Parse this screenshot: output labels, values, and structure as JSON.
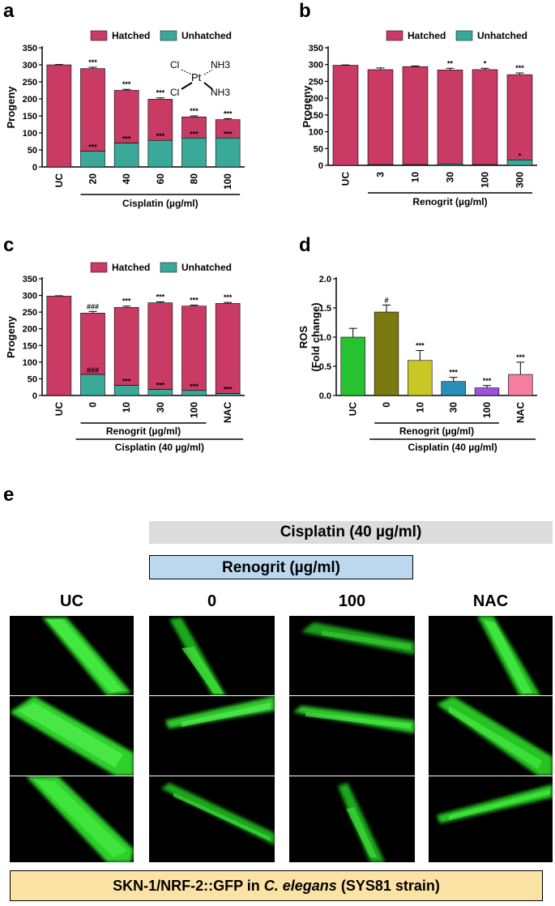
{
  "panels": {
    "a": "a",
    "b": "b",
    "c": "c",
    "d": "d",
    "e": "e"
  },
  "colors": {
    "hatched": "#c93a64",
    "unhatched": "#3aa99a"
  },
  "chart_data": [
    {
      "id": "a",
      "type": "bar",
      "stacked": true,
      "ylabel": "Progeny",
      "xlabel": "Cisplatin (µg/ml)",
      "ylim": [
        0,
        350
      ],
      "yticks": [
        0,
        50,
        100,
        150,
        200,
        250,
        300,
        350
      ],
      "legend": [
        "Hatched",
        "Unhatched"
      ],
      "legend_position": "top",
      "categories": [
        "UC",
        "20",
        "40",
        "60",
        "80",
        "100"
      ],
      "series": [
        {
          "name": "Hatched",
          "values": [
            300,
            243,
            155,
            121,
            62,
            54
          ]
        },
        {
          "name": "Unhatched",
          "values": [
            0,
            46,
            70,
            78,
            85,
            85
          ]
        }
      ],
      "totals": [
        300,
        289,
        225,
        199,
        147,
        139
      ],
      "errors": [
        1,
        4,
        3,
        4,
        3,
        3
      ],
      "sig_top": [
        "",
        "***",
        "***",
        "***",
        "***",
        "***"
      ],
      "sig_unhatched": [
        "",
        "***",
        "***",
        "***",
        "***",
        "***"
      ],
      "structure": {
        "pt": "Pt",
        "cl1": "Cl",
        "cl2": "Cl",
        "nh1": "NH",
        "nh2": "NH",
        "sub": "3"
      }
    },
    {
      "id": "b",
      "type": "bar",
      "stacked": true,
      "ylabel": "Progeny",
      "xlabel": "Renogrit (µg/ml)",
      "ylim": [
        0,
        350
      ],
      "yticks": [
        0,
        50,
        100,
        150,
        200,
        250,
        300,
        350
      ],
      "legend": [
        "Hatched",
        "Unhatched"
      ],
      "legend_position": "top",
      "categories": [
        "UC",
        "3",
        "10",
        "30",
        "100",
        "300"
      ],
      "series": [
        {
          "name": "Hatched",
          "values": [
            298,
            283,
            292,
            280,
            283,
            254
          ]
        },
        {
          "name": "Unhatched",
          "values": [
            0,
            2,
            2,
            4,
            2,
            16
          ]
        }
      ],
      "totals": [
        298,
        285,
        294,
        284,
        285,
        270
      ],
      "errors": [
        1,
        5,
        2,
        5,
        4,
        5
      ],
      "sig_top": [
        "",
        "",
        "",
        "**",
        "*",
        "***"
      ],
      "sig_unhatched": [
        "",
        "",
        "",
        "",
        "",
        "*"
      ],
      "bracket_from": 1
    },
    {
      "id": "c",
      "type": "bar",
      "stacked": true,
      "ylabel": "Progeny",
      "xlabel": "Renogrit (µg/ml)",
      "xlabel2": "Cisplatin (40 µg/ml)",
      "ylim": [
        0,
        350
      ],
      "yticks": [
        0,
        50,
        100,
        150,
        200,
        250,
        300,
        350
      ],
      "legend": [
        "Hatched",
        "Unhatched"
      ],
      "legend_position": "top",
      "categories": [
        "UC",
        "0",
        "10",
        "30",
        "100",
        "NAC"
      ],
      "series": [
        {
          "name": "Hatched",
          "values": [
            298,
            184,
            234,
            260,
            253,
            270
          ]
        },
        {
          "name": "Unhatched",
          "values": [
            0,
            63,
            30,
            18,
            15,
            6
          ]
        }
      ],
      "totals": [
        298,
        247,
        264,
        278,
        268,
        276
      ],
      "errors": [
        1,
        5,
        4,
        3,
        3,
        3
      ],
      "sig_top": [
        "",
        "###",
        "***",
        "***",
        "***",
        "***"
      ],
      "sig_unhatched": [
        "",
        "###",
        "***",
        "***",
        "***",
        "***"
      ],
      "bracket_from": 1,
      "bracket_to": 4,
      "bracket2_from": 1
    },
    {
      "id": "d",
      "type": "bar",
      "ylabel": "ROS\n(Fold change)",
      "xlabel": "Renogrit (µg/ml)",
      "xlabel2": "Cisplatin (40 µg/ml)",
      "ylim": [
        0,
        2.0
      ],
      "yticks": [
        0.0,
        0.5,
        1.0,
        1.5,
        2.0
      ],
      "categories": [
        "UC",
        "0",
        "10",
        "30",
        "100",
        "NAC"
      ],
      "values": [
        1.0,
        1.43,
        0.6,
        0.24,
        0.13,
        0.36
      ],
      "errors": [
        0.15,
        0.12,
        0.17,
        0.07,
        0.04,
        0.21
      ],
      "bar_colors": [
        "#27c22f",
        "#7b7a10",
        "#c8c725",
        "#2a8fb8",
        "#9b53d8",
        "#f57ea0"
      ],
      "sig_top": [
        "",
        "#",
        "***",
        "***",
        "***",
        "***"
      ],
      "bracket_from": 1,
      "bracket_to": 4,
      "bracket2_from": 1
    }
  ],
  "panel_e": {
    "cisplatin_header": "Cisplatin (40 µg/ml)",
    "renogrit_header": "Renogrit (µg/ml)",
    "columns": [
      "UC",
      "0",
      "100",
      "NAC"
    ],
    "caption_prefix": "SKN-1/NRF-2::GFP in ",
    "caption_species": "C. elegans",
    "caption_suffix": " (SYS81 strain)"
  }
}
